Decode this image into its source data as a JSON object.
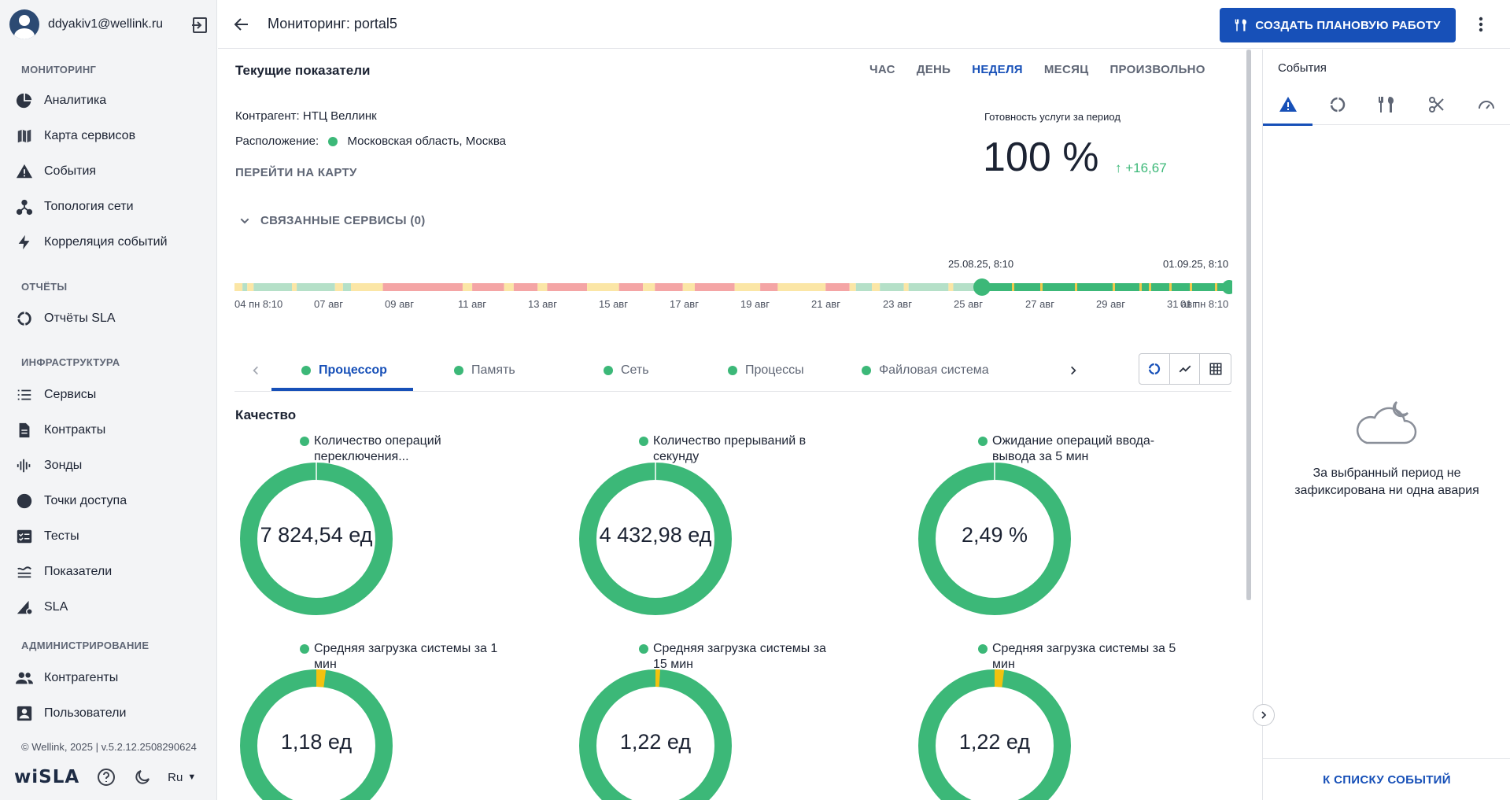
{
  "user": {
    "email": "ddyakiv1@wellink.ru"
  },
  "sidebar": {
    "sections": [
      {
        "title": "МОНИТОРИНГ"
      },
      {
        "title": "ОТЧЁТЫ"
      },
      {
        "title": "ИНФРАСТРУКТУРА"
      },
      {
        "title": "АДМИНИСТРИРОВАНИЕ"
      }
    ],
    "items": [
      {
        "label": "Аналитика",
        "icon": "pie-chart-icon"
      },
      {
        "label": "Карта сервисов",
        "icon": "map-icon"
      },
      {
        "label": "События",
        "icon": "warning-icon"
      },
      {
        "label": "Топология сети",
        "icon": "topology-icon"
      },
      {
        "label": "Корреляция событий",
        "icon": "bolt-icon"
      },
      {
        "label": "Отчёты SLA",
        "icon": "ring-icon"
      },
      {
        "label": "Сервисы",
        "icon": "list-icon"
      },
      {
        "label": "Контракты",
        "icon": "document-icon"
      },
      {
        "label": "Зонды",
        "icon": "probe-icon"
      },
      {
        "label": "Точки доступа",
        "icon": "circle-icon"
      },
      {
        "label": "Тесты",
        "icon": "checklist-icon"
      },
      {
        "label": "Показатели",
        "icon": "metrics-icon"
      },
      {
        "label": "SLA",
        "icon": "sla-icon"
      },
      {
        "label": "Контрагенты",
        "icon": "people-icon"
      },
      {
        "label": "Пользователи",
        "icon": "user-card-icon"
      }
    ],
    "copyright": "© Wellink, 2025 | v.5.2.12.2508290624",
    "brand": "wiSLA",
    "language": "Ru"
  },
  "header": {
    "title": "Мониторинг: portal5",
    "create_button": "СОЗДАТЬ ПЛАНОВУЮ РАБОТУ"
  },
  "main": {
    "current_title": "Текущие показатели",
    "period_tabs": [
      "ЧАС",
      "ДЕНЬ",
      "НЕДЕЛЯ",
      "МЕСЯЦ",
      "ПРОИЗВОЛЬНО"
    ],
    "period_active": "НЕДЕЛЯ",
    "contractor": "Контрагент: НТЦ Веллинк",
    "location_label": "Расположение:",
    "location_value": "Московская область, Москва",
    "map_link": "ПЕРЕЙТИ НА КАРТУ",
    "readiness_label": "Готовность услуги за период",
    "readiness_value": "100 %",
    "readiness_delta": "↑  +16,67",
    "linked_services": "СВЯЗАННЫЕ СЕРВИСЫ (0)",
    "timeline": {
      "range_start_label": "25.08.25, 8:10",
      "range_end_label": "01.09.25, 8:10",
      "ticks": [
        "04 пн 8:10",
        "07 авг",
        "09 авг",
        "11 авг",
        "13 авг",
        "15 авг",
        "17 авг",
        "19 авг",
        "21 авг",
        "23 авг",
        "25 авг",
        "27 авг",
        "29 авг",
        "31 авг",
        "01 пн 8:10"
      ],
      "colors": {
        "ok": "#3cb878",
        "warn": "#f2c94c",
        "bad": "#f4a5a5",
        "light_ok": "#b5e0c8",
        "light_warn": "#fbe6a6"
      }
    },
    "tabs": [
      {
        "label": "Процессор"
      },
      {
        "label": "Память"
      },
      {
        "label": "Сеть"
      },
      {
        "label": "Процессы"
      },
      {
        "label": "Файловая система"
      }
    ],
    "quality_title": "Качество",
    "gauges": [
      {
        "title": "Количество операций переключения...",
        "value": "7 824,54 ед",
        "warn_fraction": 0.0
      },
      {
        "title": "Количество прерываний в секунду",
        "value": "4 432,98 ед",
        "warn_fraction": 0.0
      },
      {
        "title": "Ожидание операций ввода-вывода за 5 мин",
        "value": "2,49 %",
        "warn_fraction": 0.0
      },
      {
        "title": "Средняя загрузка системы за 1 мин",
        "value": "1,18 ед",
        "warn_fraction": 0.02
      },
      {
        "title": "Средняя загрузка системы за 15 мин",
        "value": "1,22 ед",
        "warn_fraction": 0.01
      },
      {
        "title": "Средняя загрузка системы за 5 мин",
        "value": "1,22 ед",
        "warn_fraction": 0.02
      }
    ],
    "gauge_colors": {
      "ok": "#3cb878",
      "warn": "#f2c20f"
    }
  },
  "events": {
    "title": "События",
    "tab_icons": [
      "warning-icon",
      "ring-icon",
      "tools-icon",
      "scissors-icon",
      "speedometer-icon"
    ],
    "empty_text": "За выбранный период не зафиксирована ни одна авария",
    "footer_link": "К СПИСКУ СОБЫТИЙ"
  }
}
